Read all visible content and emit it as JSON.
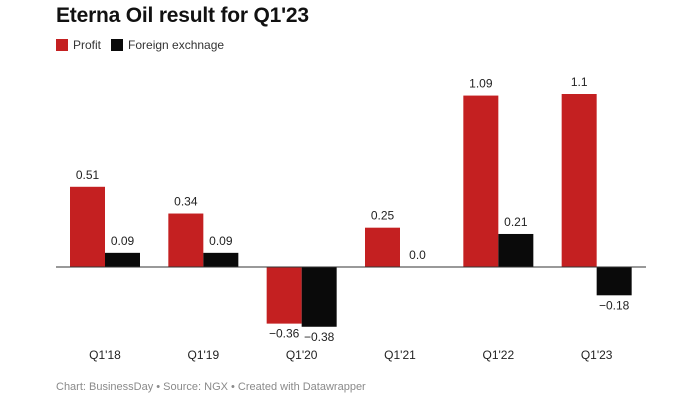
{
  "chart_data": {
    "type": "bar",
    "title": "Eterna Oil result for Q1'23",
    "categories": [
      "Q1'18",
      "Q1'19",
      "Q1'20",
      "Q1'21",
      "Q1'22",
      "Q1'23"
    ],
    "series": [
      {
        "name": "Profit",
        "color": "#c42021",
        "values": [
          0.51,
          0.34,
          -0.36,
          0.25,
          1.09,
          1.1
        ],
        "labels": [
          "0.51",
          "0.34",
          "−0.36",
          "0.25",
          "1.09",
          "1.1"
        ]
      },
      {
        "name": "Foreign exchnage",
        "color": "#0a0a0a",
        "values": [
          0.09,
          0.09,
          -0.38,
          0.0,
          0.21,
          -0.18
        ],
        "labels": [
          "0.09",
          "0.09",
          "−0.38",
          "0.0",
          "0.21",
          "−0.18"
        ]
      }
    ],
    "ylim": [
      -0.38,
      1.1
    ],
    "grid": false,
    "legend_position": "top-left",
    "source_note": "Chart: BusinessDay • Source: NGX • Created with Datawrapper"
  }
}
